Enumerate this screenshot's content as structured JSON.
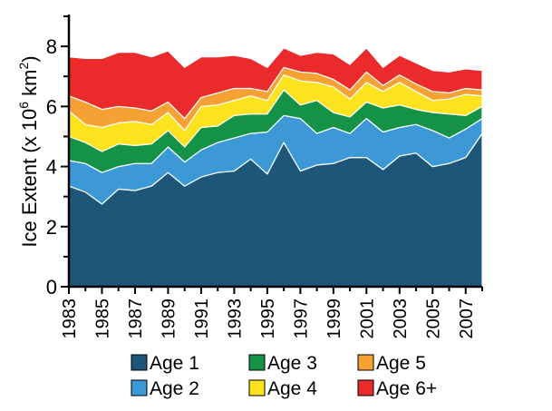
{
  "chart_data": {
    "type": "area",
    "stacked": true,
    "title": "",
    "xlabel": "",
    "ylabel": "Ice Extent (x 10^6 km^2)",
    "ylabel_parts": {
      "main": "Ice Extent (x 10",
      "exp1": "6",
      "mid": " km",
      "exp2": "2",
      "end": ")"
    },
    "xlim": [
      1983,
      2008
    ],
    "ylim": [
      0,
      9
    ],
    "y_ticks": [
      0,
      2,
      4,
      6,
      8
    ],
    "x_ticks": [
      1983,
      1985,
      1987,
      1989,
      1991,
      1993,
      1995,
      1997,
      1999,
      2001,
      2003,
      2005,
      2007
    ],
    "grid": false,
    "legend_placement": "bottom",
    "x": [
      1983,
      1984,
      1985,
      1986,
      1987,
      1988,
      1989,
      1990,
      1991,
      1992,
      1993,
      1994,
      1995,
      1996,
      1997,
      1998,
      1999,
      2000,
      2001,
      2002,
      2003,
      2004,
      2005,
      2006,
      2007,
      2008
    ],
    "series": [
      {
        "name": "Age 1",
        "color": "#1d5679",
        "values": [
          3.35,
          3.15,
          2.75,
          3.25,
          3.2,
          3.35,
          3.8,
          3.35,
          3.65,
          3.8,
          3.85,
          4.25,
          3.75,
          4.8,
          3.85,
          4.05,
          4.1,
          4.3,
          4.3,
          3.9,
          4.35,
          4.45,
          4.0,
          4.1,
          4.3,
          5.1
        ]
      },
      {
        "name": "Age 2",
        "color": "#3d98d6",
        "values": [
          0.85,
          0.95,
          1.05,
          0.75,
          0.9,
          0.75,
          0.85,
          0.8,
          0.9,
          1.0,
          1.1,
          0.85,
          1.4,
          0.9,
          1.75,
          1.05,
          1.2,
          0.8,
          1.3,
          1.25,
          0.95,
          0.95,
          1.2,
          0.85,
          0.95,
          0.5
        ]
      },
      {
        "name": "Age 3",
        "color": "#149347",
        "values": [
          0.8,
          0.7,
          0.7,
          0.75,
          0.6,
          0.65,
          0.55,
          0.5,
          0.75,
          0.55,
          0.75,
          0.65,
          0.6,
          0.85,
          0.45,
          1.1,
          0.5,
          0.55,
          0.55,
          0.8,
          0.75,
          0.5,
          0.6,
          0.8,
          0.45,
          0.4
        ]
      },
      {
        "name": "Age 4",
        "color": "#fde31e",
        "values": [
          0.85,
          0.6,
          0.8,
          0.7,
          0.8,
          0.65,
          0.6,
          0.55,
          0.7,
          0.7,
          0.5,
          0.6,
          0.45,
          0.5,
          0.8,
          0.6,
          0.85,
          0.6,
          0.65,
          0.55,
          0.75,
          0.6,
          0.4,
          0.5,
          0.7,
          0.35
        ]
      },
      {
        "name": "Age 5",
        "color": "#f5a133",
        "values": [
          0.5,
          0.75,
          0.6,
          0.55,
          0.45,
          0.45,
          0.35,
          0.4,
          0.3,
          0.4,
          0.4,
          0.25,
          0.3,
          0.25,
          0.3,
          0.3,
          0.25,
          0.3,
          0.35,
          0.2,
          0.25,
          0.25,
          0.3,
          0.2,
          0.2,
          0.2
        ]
      },
      {
        "name": "Age 6+",
        "color": "#ea2a2b",
        "values": [
          1.3,
          1.45,
          1.7,
          1.8,
          1.85,
          1.8,
          1.7,
          1.7,
          1.35,
          1.2,
          1.1,
          1.0,
          0.8,
          0.65,
          0.55,
          0.7,
          0.85,
          0.85,
          0.8,
          0.6,
          0.65,
          0.7,
          0.7,
          0.7,
          0.65,
          0.65
        ]
      }
    ]
  }
}
